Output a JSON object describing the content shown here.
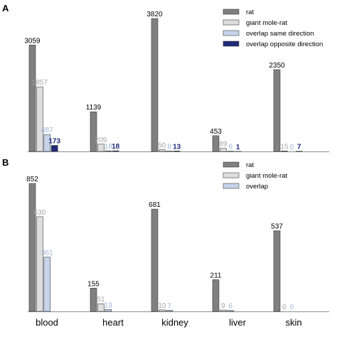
{
  "chart_data": [
    {
      "panel": "A",
      "type": "bar",
      "categories": [
        "blood",
        "heart",
        "kidney",
        "liver",
        "skin"
      ],
      "ylim": [
        0,
        3820
      ],
      "grid": false,
      "legend_position": "top-right",
      "series": [
        {
          "name": "rat",
          "color": "#808080",
          "label_color": "#000000",
          "values": [
            3059,
            1139,
            3820,
            453,
            2350
          ],
          "labels": [
            "3059",
            "1139",
            "3820",
            "453",
            "2350"
          ]
        },
        {
          "name": "giant mole-rat",
          "color": "#dedede",
          "label_color": "#a6a6a6",
          "values": [
            1857,
            209,
            50,
            89,
            15
          ],
          "labels": [
            "1857",
            "209",
            "50",
            "89",
            "15"
          ]
        },
        {
          "name": "overlap same direction",
          "color": "#c5d4ea",
          "label_color": "#9db3d9",
          "values": [
            487,
            18,
            8,
            6,
            0
          ],
          "labels": [
            "487",
            "18",
            "8",
            "6",
            "0"
          ]
        },
        {
          "name": "overlap opposite direction",
          "color": "#1f2a7a",
          "label_color": "#1f2a7a",
          "values": [
            173,
            18,
            13,
            1,
            7
          ],
          "labels": [
            "173",
            "18",
            "13",
            "1",
            "7"
          ]
        }
      ]
    },
    {
      "panel": "B",
      "type": "bar",
      "categories": [
        "blood",
        "heart",
        "kidney",
        "liver",
        "skin"
      ],
      "ylim": [
        0,
        852
      ],
      "grid": false,
      "legend_position": "top-right",
      "series": [
        {
          "name": "rat",
          "color": "#808080",
          "label_color": "#000000",
          "values": [
            852,
            155,
            681,
            211,
            537
          ],
          "labels": [
            "852",
            "155",
            "681",
            "211",
            "537"
          ]
        },
        {
          "name": "giant mole-rat",
          "color": "#dedede",
          "label_color": "#a6a6a6",
          "values": [
            630,
            51,
            10,
            9,
            0
          ],
          "labels": [
            "630",
            "51",
            "10",
            "9",
            "0"
          ]
        },
        {
          "name": "overlap",
          "color": "#c5d4ea",
          "label_color": "#9db3d9",
          "values": [
            361,
            13,
            7,
            6,
            0
          ],
          "labels": [
            "361",
            "13",
            "7",
            "6",
            "0"
          ]
        }
      ]
    }
  ]
}
